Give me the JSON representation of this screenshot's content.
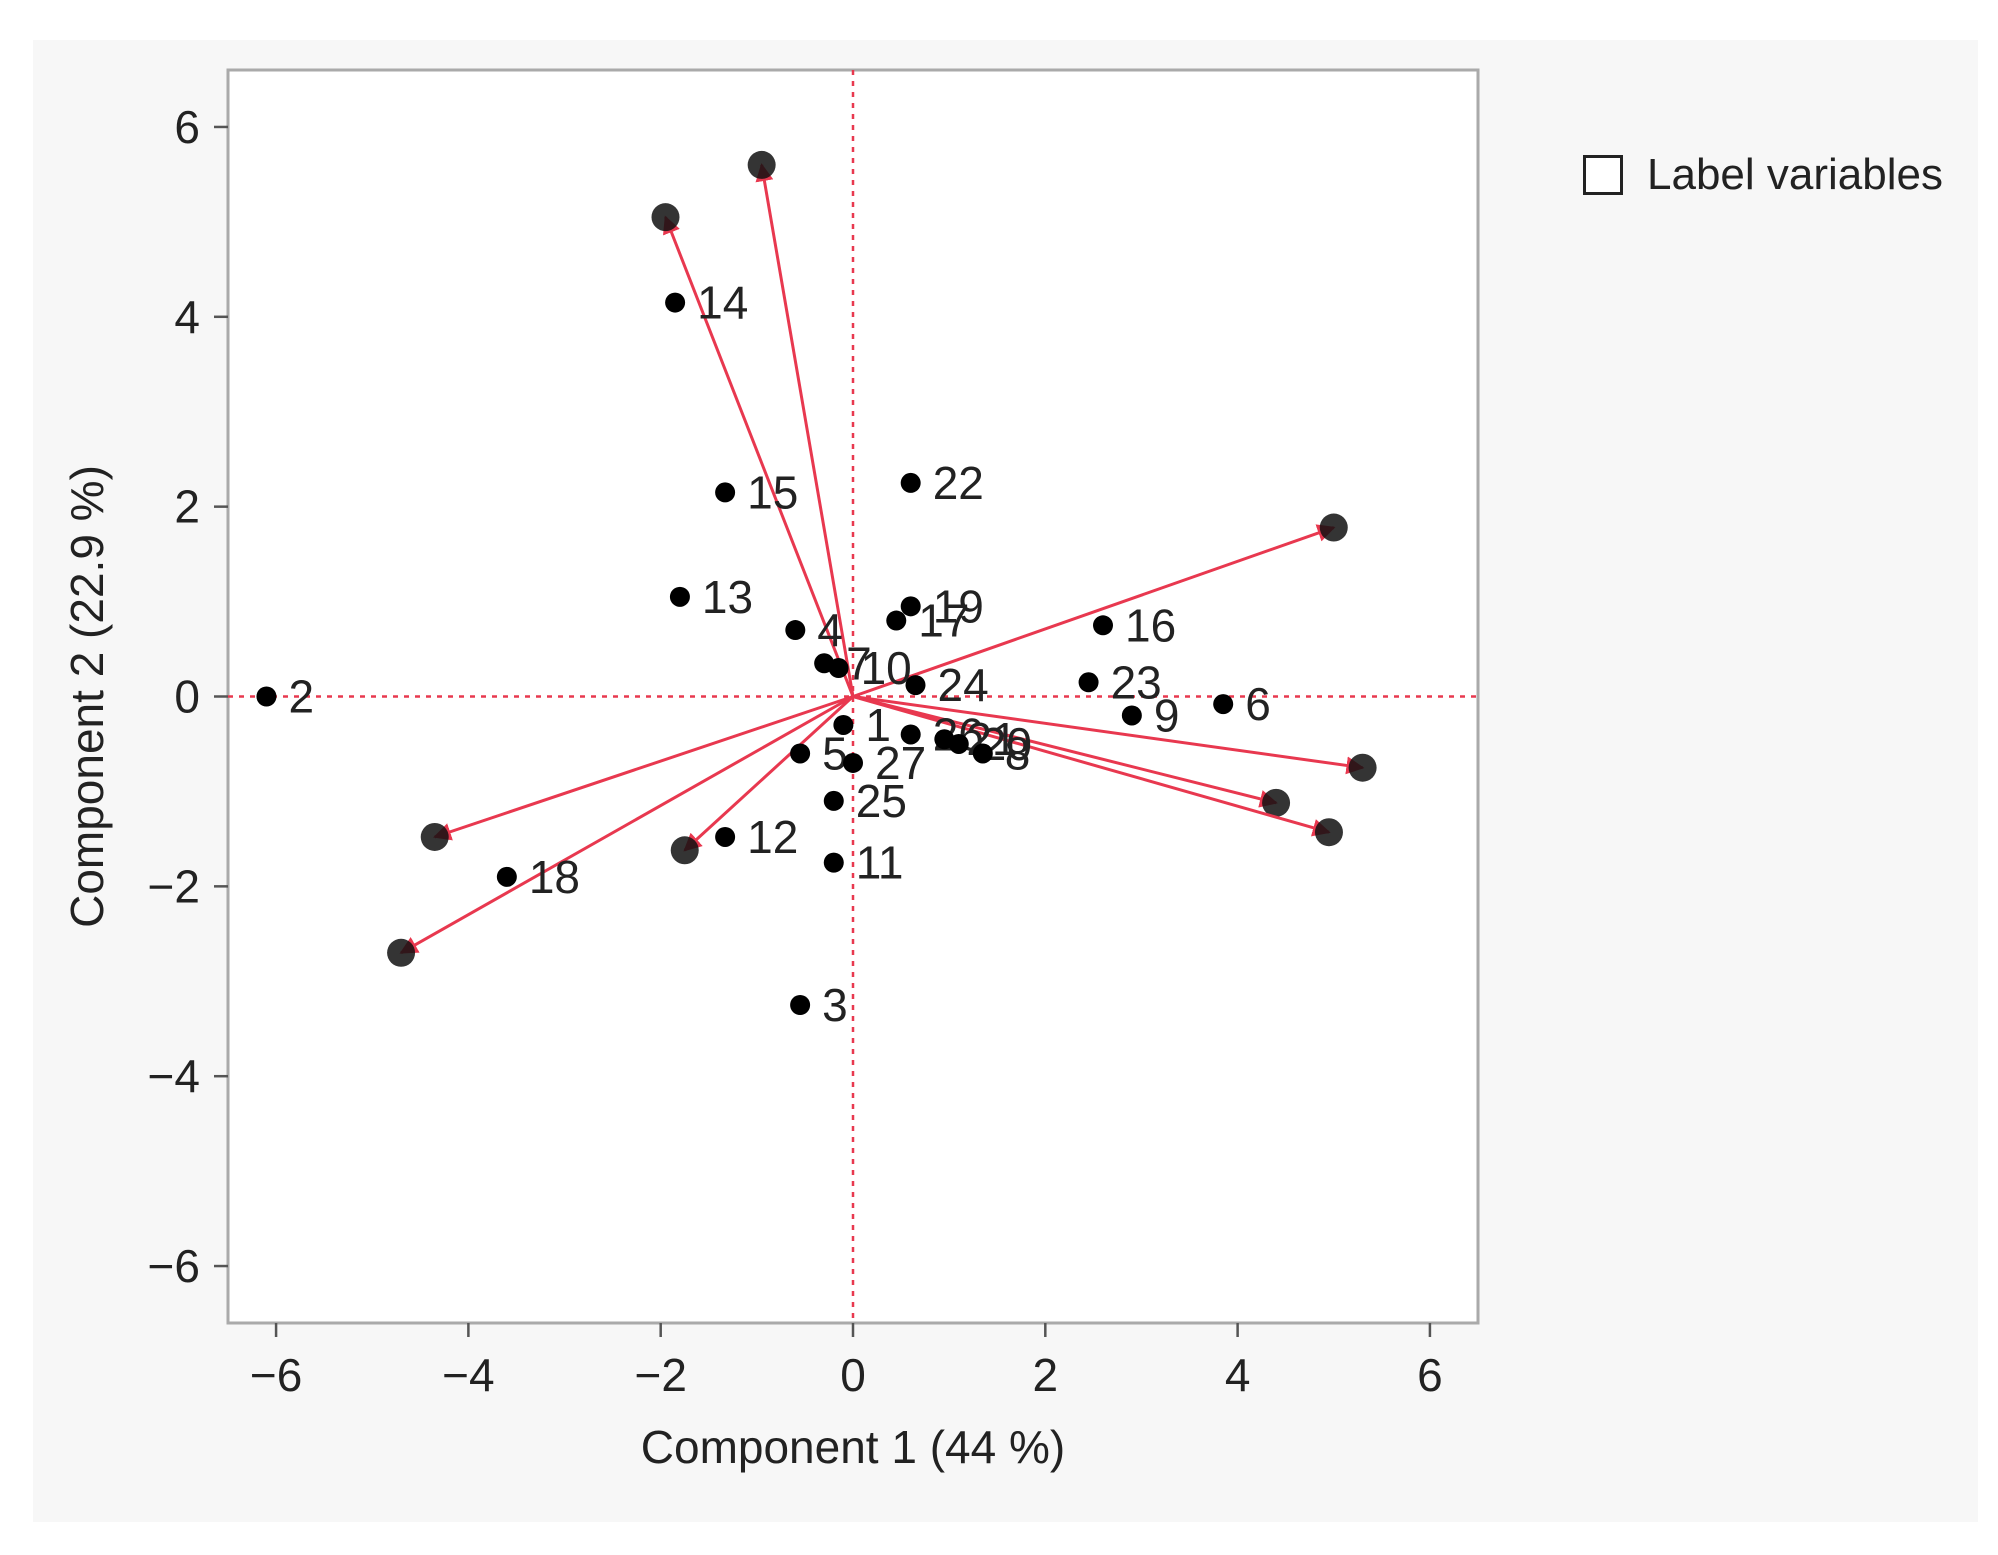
{
  "legend": {
    "checkbox_label": "Label variables",
    "checked": false
  },
  "colors": {
    "arrow": "#e8384f",
    "ref_line": "#e8384f",
    "point": "#000000",
    "frame": "#aaaaaa"
  },
  "chart_data": {
    "type": "scatter",
    "subtype": "biplot",
    "xlabel": "Component 1  (44 %)",
    "ylabel": "Component 2  (22.9 %)",
    "xlim": [
      -6.5,
      6.5
    ],
    "ylim": [
      -6.6,
      6.6
    ],
    "xticks": [
      "−6",
      "−4",
      "−2",
      "0",
      "2",
      "4",
      "6"
    ],
    "yticks": [
      "6",
      "4",
      "2",
      "0",
      "−2",
      "−4",
      "−6"
    ],
    "xtick_values": [
      -6,
      -4,
      -2,
      0,
      2,
      4,
      6
    ],
    "ytick_values": [
      6,
      4,
      2,
      0,
      -2,
      -4,
      -6
    ],
    "reference_lines": {
      "x": 0,
      "y": 0,
      "style": "dotted"
    },
    "points": [
      {
        "label": "2",
        "x": -6.1,
        "y": 0.0
      },
      {
        "label": "14",
        "x": -1.85,
        "y": 4.15
      },
      {
        "label": "15",
        "x": -1.33,
        "y": 2.15
      },
      {
        "label": "13",
        "x": -1.8,
        "y": 1.05
      },
      {
        "label": "22",
        "x": 0.6,
        "y": 2.25
      },
      {
        "label": "19",
        "x": 0.6,
        "y": 0.95
      },
      {
        "label": "17",
        "x": 0.45,
        "y": 0.8
      },
      {
        "label": "16",
        "x": 2.6,
        "y": 0.75
      },
      {
        "label": "4",
        "x": -0.6,
        "y": 0.7
      },
      {
        "label": "7",
        "x": -0.3,
        "y": 0.35
      },
      {
        "label": "10",
        "x": -0.15,
        "y": 0.3
      },
      {
        "label": "24",
        "x": 0.65,
        "y": 0.12
      },
      {
        "label": "23",
        "x": 2.45,
        "y": 0.15
      },
      {
        "label": "9",
        "x": 2.9,
        "y": -0.2
      },
      {
        "label": "6",
        "x": 3.85,
        "y": -0.08
      },
      {
        "label": "1",
        "x": -0.1,
        "y": -0.3
      },
      {
        "label": "26",
        "x": 0.6,
        "y": -0.4
      },
      {
        "label": "21",
        "x": 0.95,
        "y": -0.45
      },
      {
        "label": "20",
        "x": 1.1,
        "y": -0.5
      },
      {
        "label": "8",
        "x": 1.35,
        "y": -0.6
      },
      {
        "label": "5",
        "x": -0.55,
        "y": -0.6
      },
      {
        "label": "27",
        "x": 0.0,
        "y": -0.7
      },
      {
        "label": "25",
        "x": -0.2,
        "y": -1.1
      },
      {
        "label": "12",
        "x": -1.33,
        "y": -1.48
      },
      {
        "label": "11",
        "x": -0.2,
        "y": -1.75
      },
      {
        "label": "18",
        "x": -3.6,
        "y": -1.9
      },
      {
        "label": "3",
        "x": -0.55,
        "y": -3.25
      }
    ],
    "loadings": [
      {
        "x": -0.95,
        "y": 5.6
      },
      {
        "x": -1.95,
        "y": 5.05
      },
      {
        "x": 5.0,
        "y": 1.78
      },
      {
        "x": 5.3,
        "y": -0.75
      },
      {
        "x": 4.4,
        "y": -1.12
      },
      {
        "x": 4.95,
        "y": -1.43
      },
      {
        "x": -4.35,
        "y": -1.48
      },
      {
        "x": -1.75,
        "y": -1.62
      },
      {
        "x": -4.7,
        "y": -2.7
      }
    ]
  }
}
